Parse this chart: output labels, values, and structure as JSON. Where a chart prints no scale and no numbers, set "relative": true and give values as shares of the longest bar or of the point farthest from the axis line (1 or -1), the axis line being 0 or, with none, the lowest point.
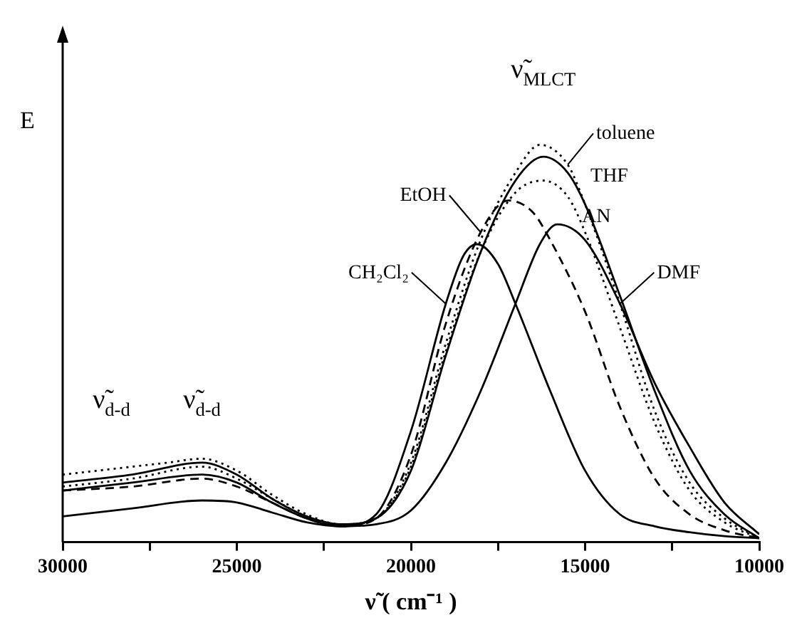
{
  "chart_data": {
    "type": "line",
    "relative": true,
    "xlabel": "ν̃ ( cm⁻¹ )",
    "ylabel": "E",
    "xlim": [
      30000,
      10000
    ],
    "xticks": [
      30000,
      {
        "value": 27500,
        "label": null
      },
      25000,
      {
        "value": 22500,
        "label": null
      },
      20000,
      {
        "value": 17500,
        "label": null
      },
      15000,
      {
        "value": 12500,
        "label": null
      },
      10000
    ],
    "grid": false,
    "legend": false,
    "marker": "none",
    "annotations": [
      "ν̃$_{MLCT}$",
      "ν̃$_{d-d}$",
      "ν̃$_{d-d}$"
    ],
    "series": [
      {
        "name": "toluene",
        "color": "#000000",
        "line_style": "dotted",
        "x": [
          30000,
          29000,
          28000,
          27000,
          26000,
          25000,
          24000,
          23000,
          22000,
          21000,
          20000,
          19000,
          18000,
          17000,
          16300,
          15500,
          15000,
          14000,
          13000,
          12000,
          11000,
          10000
        ],
        "values": [
          0.17,
          0.18,
          0.19,
          0.2,
          0.21,
          0.18,
          0.12,
          0.07,
          0.045,
          0.06,
          0.2,
          0.5,
          0.76,
          0.93,
          1.0,
          0.95,
          0.85,
          0.6,
          0.33,
          0.15,
          0.06,
          0.01
        ]
      },
      {
        "name": "THF",
        "color": "#000000",
        "line_style": "solid",
        "x": [
          30000,
          28000,
          26000,
          25000,
          24000,
          23000,
          22000,
          21000,
          20000,
          19000,
          18000,
          17000,
          16200,
          15500,
          15000,
          14000,
          13000,
          12000,
          11000,
          10000
        ],
        "values": [
          0.15,
          0.17,
          0.2,
          0.17,
          0.11,
          0.065,
          0.045,
          0.06,
          0.18,
          0.47,
          0.73,
          0.91,
          0.97,
          0.93,
          0.85,
          0.62,
          0.38,
          0.18,
          0.07,
          0.01
        ]
      },
      {
        "name": "AN",
        "color": "#000000",
        "line_style": "dotted",
        "x": [
          30000,
          28000,
          26000,
          25000,
          24000,
          23000,
          22000,
          21000,
          20000,
          19000,
          18000,
          17000,
          16200,
          15500,
          15000,
          14000,
          13000,
          12000,
          11000,
          10000
        ],
        "values": [
          0.14,
          0.16,
          0.19,
          0.16,
          0.11,
          0.065,
          0.045,
          0.06,
          0.19,
          0.48,
          0.73,
          0.88,
          0.91,
          0.87,
          0.78,
          0.54,
          0.3,
          0.13,
          0.05,
          0.01
        ]
      },
      {
        "name": "EtOH",
        "color": "#000000",
        "line_style": "dashed",
        "x": [
          30000,
          28000,
          26000,
          25000,
          24000,
          23000,
          22000,
          21000,
          20000,
          19000,
          18000,
          17200,
          16500,
          16000,
          15000,
          14000,
          13000,
          12000,
          11000,
          10000
        ],
        "values": [
          0.13,
          0.14,
          0.16,
          0.14,
          0.1,
          0.06,
          0.04,
          0.06,
          0.22,
          0.55,
          0.78,
          0.86,
          0.83,
          0.76,
          0.58,
          0.34,
          0.16,
          0.07,
          0.03,
          0.01
        ]
      },
      {
        "name": "DMF",
        "color": "#000000",
        "line_style": "solid",
        "x": [
          30000,
          28000,
          26000,
          25000,
          24000,
          23000,
          22000,
          21000,
          20000,
          19000,
          18000,
          17000,
          16300,
          15800,
          15000,
          14000,
          13000,
          12000,
          11000,
          10000
        ],
        "values": [
          0.065,
          0.085,
          0.105,
          0.1,
          0.075,
          0.05,
          0.04,
          0.045,
          0.08,
          0.2,
          0.38,
          0.6,
          0.75,
          0.8,
          0.76,
          0.6,
          0.4,
          0.24,
          0.1,
          0.02
        ]
      },
      {
        "name": "CH₂Cl₂",
        "color": "#000000",
        "line_style": "solid",
        "x": [
          30000,
          28000,
          26000,
          25000,
          24000,
          23000,
          22000,
          21000,
          20000,
          19000,
          18500,
          18100,
          17500,
          17000,
          16000,
          15000,
          14000,
          13000,
          12000,
          11000,
          10000
        ],
        "values": [
          0.13,
          0.15,
          0.17,
          0.15,
          0.1,
          0.06,
          0.04,
          0.07,
          0.28,
          0.6,
          0.72,
          0.75,
          0.7,
          0.6,
          0.38,
          0.18,
          0.07,
          0.04,
          0.025,
          0.015,
          0.01
        ]
      }
    ]
  }
}
